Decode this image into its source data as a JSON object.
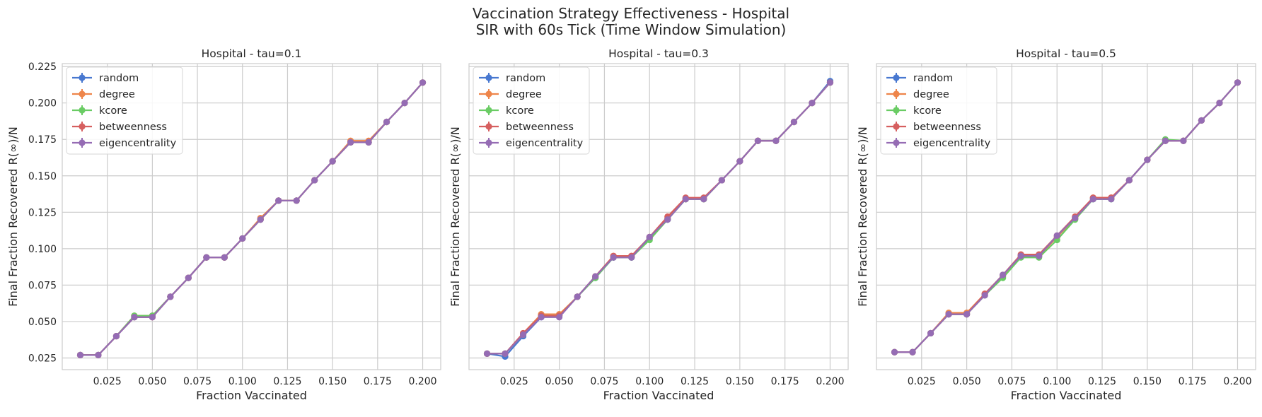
{
  "figure": {
    "title_line1": "Vaccination Strategy Effectiveness - Hospital",
    "title_line2": "SIR with 60s Tick (Time Window Simulation)"
  },
  "strategies": [
    {
      "name": "random",
      "color": "#4878d0"
    },
    {
      "name": "degree",
      "color": "#ee854a"
    },
    {
      "name": "kcore",
      "color": "#6acc64"
    },
    {
      "name": "betweenness",
      "color": "#d65f5f"
    },
    {
      "name": "eigencentrality",
      "color": "#956cb4"
    }
  ],
  "chart_data": [
    {
      "type": "line",
      "title": "Hospital - tau=0.1",
      "xlabel": "Fraction Vaccinated",
      "ylabel": "Final Fraction Recovered R(∞)/N",
      "xlim": [
        0.0,
        0.21
      ],
      "ylim": [
        0.017,
        0.227
      ],
      "xticks": [
        0.025,
        0.05,
        0.075,
        0.1,
        0.125,
        0.15,
        0.175,
        0.2
      ],
      "xtick_labels": [
        "0.025",
        "0.050",
        "0.075",
        "0.100",
        "0.125",
        "0.150",
        "0.175",
        "0.200"
      ],
      "yticks": [
        0.025,
        0.05,
        0.075,
        0.1,
        0.125,
        0.15,
        0.175,
        0.2,
        0.225
      ],
      "ytick_labels": [
        "0.025",
        "0.050",
        "0.075",
        "0.100",
        "0.125",
        "0.150",
        "0.175",
        "0.200",
        "0.225"
      ],
      "show_ytick_labels": true,
      "grid": true,
      "legend_position": "top-left",
      "x": [
        0.01,
        0.02,
        0.03,
        0.04,
        0.05,
        0.06,
        0.07,
        0.08,
        0.09,
        0.1,
        0.11,
        0.12,
        0.13,
        0.14,
        0.15,
        0.16,
        0.17,
        0.18,
        0.19,
        0.2
      ],
      "series": [
        {
          "name": "random",
          "values": [
            0.027,
            0.027,
            0.04,
            0.053,
            0.054,
            0.067,
            0.08,
            0.094,
            0.094,
            0.107,
            0.12,
            0.133,
            0.133,
            0.147,
            0.16,
            0.173,
            0.173,
            0.187,
            0.2,
            0.214
          ]
        },
        {
          "name": "degree",
          "values": [
            0.027,
            0.027,
            0.04,
            0.054,
            0.054,
            0.067,
            0.08,
            0.094,
            0.094,
            0.107,
            0.121,
            0.133,
            0.133,
            0.147,
            0.16,
            0.174,
            0.174,
            0.187,
            0.2,
            0.214
          ]
        },
        {
          "name": "kcore",
          "values": [
            0.027,
            0.027,
            0.04,
            0.054,
            0.054,
            0.067,
            0.08,
            0.094,
            0.094,
            0.107,
            0.12,
            0.133,
            0.133,
            0.147,
            0.16,
            0.173,
            0.173,
            0.187,
            0.2,
            0.214
          ]
        },
        {
          "name": "betweenness",
          "values": [
            0.027,
            0.027,
            0.04,
            0.053,
            0.053,
            0.067,
            0.08,
            0.094,
            0.094,
            0.107,
            0.12,
            0.133,
            0.133,
            0.147,
            0.16,
            0.173,
            0.173,
            0.187,
            0.2,
            0.214
          ]
        },
        {
          "name": "eigencentrality",
          "values": [
            0.027,
            0.027,
            0.04,
            0.053,
            0.053,
            0.067,
            0.08,
            0.094,
            0.094,
            0.107,
            0.12,
            0.133,
            0.133,
            0.147,
            0.16,
            0.173,
            0.173,
            0.187,
            0.2,
            0.214
          ]
        }
      ]
    },
    {
      "type": "line",
      "title": "Hospital - tau=0.3",
      "xlabel": "Fraction Vaccinated",
      "ylabel": "Final Fraction Recovered R(∞)/N",
      "xlim": [
        0.0,
        0.21
      ],
      "ylim": [
        0.017,
        0.227
      ],
      "xticks": [
        0.025,
        0.05,
        0.075,
        0.1,
        0.125,
        0.15,
        0.175,
        0.2
      ],
      "xtick_labels": [
        "0.025",
        "0.050",
        "0.075",
        "0.100",
        "0.125",
        "0.150",
        "0.175",
        "0.200"
      ],
      "yticks": [
        0.025,
        0.05,
        0.075,
        0.1,
        0.125,
        0.15,
        0.175,
        0.2,
        0.225
      ],
      "ytick_labels": [
        "0.025",
        "0.050",
        "0.075",
        "0.100",
        "0.125",
        "0.150",
        "0.175",
        "0.200",
        "0.225"
      ],
      "show_ytick_labels": false,
      "grid": true,
      "legend_position": "top-left",
      "x": [
        0.01,
        0.02,
        0.03,
        0.04,
        0.05,
        0.06,
        0.07,
        0.08,
        0.09,
        0.1,
        0.11,
        0.12,
        0.13,
        0.14,
        0.15,
        0.16,
        0.17,
        0.18,
        0.19,
        0.2
      ],
      "series": [
        {
          "name": "random",
          "values": [
            0.028,
            0.026,
            0.04,
            0.053,
            0.054,
            0.067,
            0.08,
            0.094,
            0.094,
            0.107,
            0.12,
            0.134,
            0.134,
            0.147,
            0.16,
            0.174,
            0.174,
            0.187,
            0.2,
            0.215
          ]
        },
        {
          "name": "degree",
          "values": [
            0.028,
            0.028,
            0.042,
            0.055,
            0.055,
            0.067,
            0.081,
            0.095,
            0.095,
            0.108,
            0.121,
            0.134,
            0.134,
            0.147,
            0.16,
            0.174,
            0.174,
            0.187,
            0.2,
            0.214
          ]
        },
        {
          "name": "kcore",
          "values": [
            0.028,
            0.028,
            0.041,
            0.054,
            0.054,
            0.067,
            0.08,
            0.094,
            0.094,
            0.106,
            0.12,
            0.134,
            0.134,
            0.147,
            0.16,
            0.174,
            0.174,
            0.187,
            0.2,
            0.214
          ]
        },
        {
          "name": "betweenness",
          "values": [
            0.028,
            0.028,
            0.042,
            0.054,
            0.054,
            0.067,
            0.081,
            0.095,
            0.095,
            0.108,
            0.122,
            0.135,
            0.135,
            0.147,
            0.16,
            0.174,
            0.174,
            0.187,
            0.2,
            0.214
          ]
        },
        {
          "name": "eigencentrality",
          "values": [
            0.028,
            0.028,
            0.041,
            0.053,
            0.053,
            0.067,
            0.081,
            0.094,
            0.094,
            0.108,
            0.12,
            0.134,
            0.134,
            0.147,
            0.16,
            0.174,
            0.174,
            0.187,
            0.2,
            0.214
          ]
        }
      ]
    },
    {
      "type": "line",
      "title": "Hospital - tau=0.5",
      "xlabel": "Fraction Vaccinated",
      "ylabel": "Final Fraction Recovered R(∞)/N",
      "xlim": [
        0.0,
        0.21
      ],
      "ylim": [
        0.017,
        0.227
      ],
      "xticks": [
        0.025,
        0.05,
        0.075,
        0.1,
        0.125,
        0.15,
        0.175,
        0.2
      ],
      "xtick_labels": [
        "0.025",
        "0.050",
        "0.075",
        "0.100",
        "0.125",
        "0.150",
        "0.175",
        "0.200"
      ],
      "yticks": [
        0.025,
        0.05,
        0.075,
        0.1,
        0.125,
        0.15,
        0.175,
        0.2,
        0.225
      ],
      "ytick_labels": [
        "0.025",
        "0.050",
        "0.075",
        "0.100",
        "0.125",
        "0.150",
        "0.175",
        "0.200",
        "0.225"
      ],
      "show_ytick_labels": false,
      "grid": true,
      "legend_position": "top-left",
      "x": [
        0.01,
        0.02,
        0.03,
        0.04,
        0.05,
        0.06,
        0.07,
        0.08,
        0.09,
        0.1,
        0.11,
        0.12,
        0.13,
        0.14,
        0.15,
        0.16,
        0.17,
        0.18,
        0.19,
        0.2
      ],
      "series": [
        {
          "name": "random",
          "values": [
            0.029,
            0.029,
            0.042,
            0.055,
            0.055,
            0.069,
            0.082,
            0.095,
            0.095,
            0.108,
            0.121,
            0.134,
            0.134,
            0.147,
            0.161,
            0.174,
            0.174,
            0.188,
            0.2,
            0.214
          ]
        },
        {
          "name": "degree",
          "values": [
            0.029,
            0.029,
            0.042,
            0.056,
            0.056,
            0.069,
            0.081,
            0.095,
            0.095,
            0.108,
            0.121,
            0.135,
            0.135,
            0.147,
            0.161,
            0.174,
            0.174,
            0.188,
            0.2,
            0.214
          ]
        },
        {
          "name": "kcore",
          "values": [
            0.029,
            0.029,
            0.042,
            0.055,
            0.055,
            0.068,
            0.08,
            0.094,
            0.094,
            0.106,
            0.12,
            0.134,
            0.134,
            0.147,
            0.161,
            0.175,
            0.174,
            0.188,
            0.2,
            0.214
          ]
        },
        {
          "name": "betweenness",
          "values": [
            0.029,
            0.029,
            0.042,
            0.055,
            0.055,
            0.069,
            0.082,
            0.096,
            0.096,
            0.109,
            0.122,
            0.135,
            0.135,
            0.147,
            0.161,
            0.174,
            0.174,
            0.188,
            0.2,
            0.214
          ]
        },
        {
          "name": "eigencentrality",
          "values": [
            0.029,
            0.029,
            0.042,
            0.055,
            0.055,
            0.068,
            0.082,
            0.095,
            0.095,
            0.109,
            0.121,
            0.134,
            0.134,
            0.147,
            0.161,
            0.174,
            0.174,
            0.188,
            0.2,
            0.214
          ]
        }
      ]
    }
  ]
}
